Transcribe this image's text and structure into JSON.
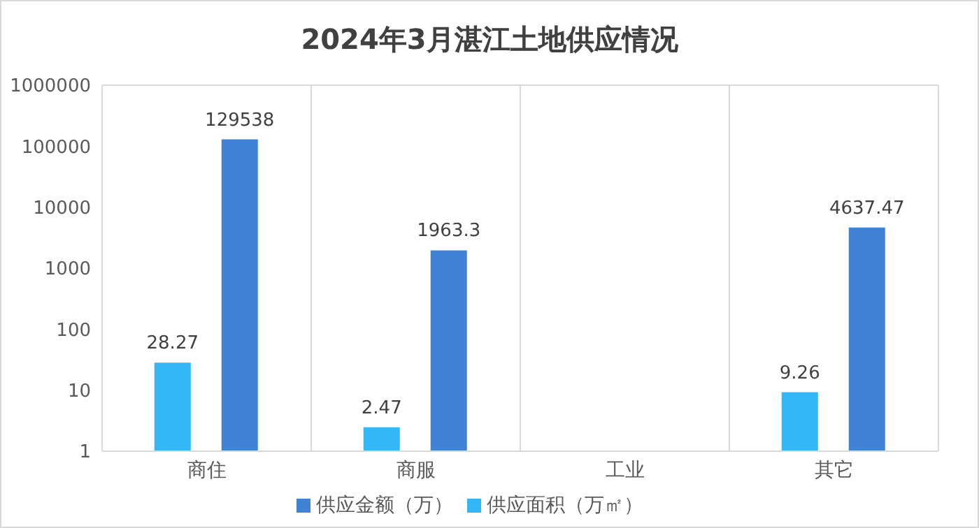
{
  "chart_data": {
    "type": "bar",
    "title": "2024年3月湛江土地供应情况",
    "categories": [
      "商住",
      "商服",
      "工业",
      "其它"
    ],
    "series": [
      {
        "name": "供应面积（万㎡）",
        "color": "#33b6f6",
        "values": [
          28.27,
          2.47,
          null,
          9.26
        ]
      },
      {
        "name": "供应金额（万）",
        "color": "#3f82d6",
        "values": [
          129538,
          1963.3,
          null,
          4637.47
        ]
      }
    ],
    "log": "y",
    "ylim": [
      1,
      1000000
    ],
    "yticks": [
      1,
      10,
      100,
      1000,
      10000,
      100000,
      1000000
    ],
    "grid": true,
    "legend": "bottom",
    "data_labels": true
  }
}
